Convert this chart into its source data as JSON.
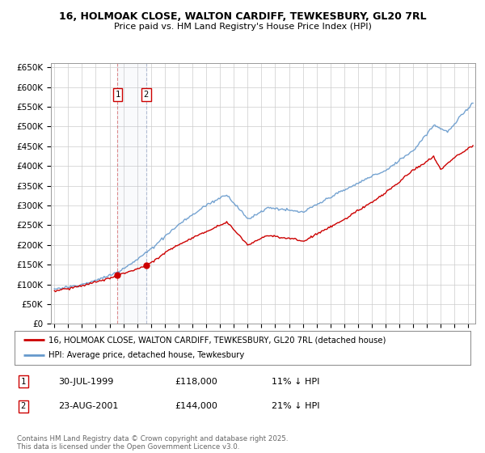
{
  "title": "16, HOLMOAK CLOSE, WALTON CARDIFF, TEWKESBURY, GL20 7RL",
  "subtitle": "Price paid vs. HM Land Registry's House Price Index (HPI)",
  "ylim": [
    0,
    660000
  ],
  "yticks": [
    0,
    50000,
    100000,
    150000,
    200000,
    250000,
    300000,
    350000,
    400000,
    450000,
    500000,
    550000,
    600000,
    650000
  ],
  "ytick_labels": [
    "£0",
    "£50K",
    "£100K",
    "£150K",
    "£200K",
    "£250K",
    "£300K",
    "£350K",
    "£400K",
    "£450K",
    "£500K",
    "£550K",
    "£600K",
    "£650K"
  ],
  "line1_color": "#cc0000",
  "line2_color": "#6699cc",
  "legend_line1": "16, HOLMOAK CLOSE, WALTON CARDIFF, TEWKESBURY, GL20 7RL (detached house)",
  "legend_line2": "HPI: Average price, detached house, Tewkesbury",
  "transaction1_date_num": 1999.58,
  "transaction1_price": 118000,
  "transaction2_date_num": 2001.65,
  "transaction2_price": 144000,
  "annotation_rows": [
    {
      "num": "1",
      "date": "30-JUL-1999",
      "price": "£118,000",
      "pct": "11% ↓ HPI"
    },
    {
      "num": "2",
      "date": "23-AUG-2001",
      "price": "£144,000",
      "pct": "21% ↓ HPI"
    }
  ],
  "copyright_text": "Contains HM Land Registry data © Crown copyright and database right 2025.\nThis data is licensed under the Open Government Licence v3.0.",
  "background_color": "#ffffff",
  "grid_color": "#cccccc",
  "chart_bg": "#f5f5f5"
}
